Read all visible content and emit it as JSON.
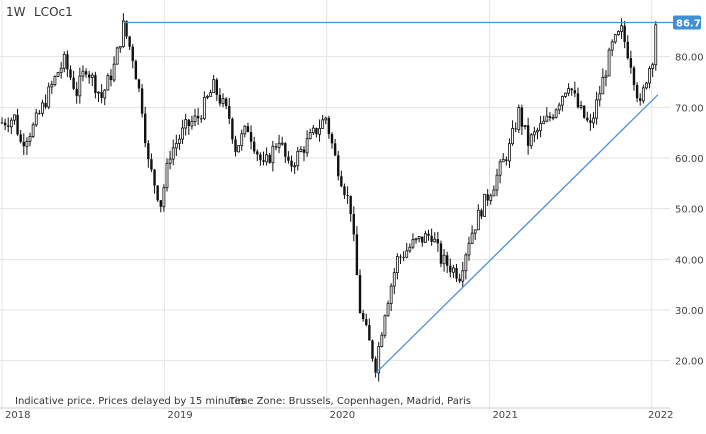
{
  "header": {
    "interval": "1W",
    "symbol": "LCOc1"
  },
  "footer": {
    "note": "Indicative price. Prices delayed by 15 minutes",
    "timezone": "Time Zone: Brussels, Copenhagen, Madrid, Paris"
  },
  "colors": {
    "candle": "#111111",
    "trendline": "#4a90d9",
    "price_tag_bg": "#3d8fd6",
    "price_tag_text": "#ffffff",
    "grid": "#e3e3e3"
  },
  "chart_data": {
    "type": "candlestick",
    "title": "",
    "x_axis": {
      "type": "time",
      "range": [
        "2018-01-01",
        "2022-01-15"
      ],
      "ticks": [
        {
          "date": "2018-01-01",
          "label": "2018"
        },
        {
          "date": "2019-01-01",
          "label": "2019"
        },
        {
          "date": "2020-01-01",
          "label": "2020"
        },
        {
          "date": "2021-01-01",
          "label": "2021"
        },
        {
          "date": "2022-01-01",
          "label": "2022"
        }
      ]
    },
    "y_axis": {
      "position": "right",
      "range": [
        15,
        90
      ],
      "ticks": [
        {
          "value": 20,
          "label": "20.00"
        },
        {
          "value": 30,
          "label": "30.00"
        },
        {
          "value": 40,
          "label": "40.00"
        },
        {
          "value": 50,
          "label": "50.00"
        },
        {
          "value": 60,
          "label": "60.00"
        },
        {
          "value": 70,
          "label": "70.00"
        },
        {
          "value": 80,
          "label": "80.00"
        }
      ]
    },
    "grid": true,
    "price_tag": {
      "value": 86.74,
      "label": "86.74"
    },
    "horizontal_line": {
      "start_date": "2018-10-01",
      "value": 86.74
    },
    "trendline": {
      "start": {
        "date": "2020-04-20",
        "value": 17.5
      },
      "end": {
        "date": "2022-01-15",
        "value": 72.5
      }
    },
    "price_path": [
      [
        "2018-01-01",
        67
      ],
      [
        "2018-01-29",
        68
      ],
      [
        "2018-02-12",
        63
      ],
      [
        "2018-03-12",
        66
      ],
      [
        "2018-04-02",
        70
      ],
      [
        "2018-05-07",
        77
      ],
      [
        "2018-05-21",
        79
      ],
      [
        "2018-06-18",
        73
      ],
      [
        "2018-07-09",
        78
      ],
      [
        "2018-08-13",
        72
      ],
      [
        "2018-09-10",
        78
      ],
      [
        "2018-10-01",
        86
      ],
      [
        "2018-10-22",
        80
      ],
      [
        "2018-11-12",
        70
      ],
      [
        "2018-11-26",
        59
      ],
      [
        "2018-12-24",
        51
      ],
      [
        "2019-01-14",
        61
      ],
      [
        "2019-02-18",
        66
      ],
      [
        "2019-03-18",
        68
      ],
      [
        "2019-04-22",
        74
      ],
      [
        "2019-05-27",
        68
      ],
      [
        "2019-06-10",
        62
      ],
      [
        "2019-07-08",
        66
      ],
      [
        "2019-08-12",
        58
      ],
      [
        "2019-09-16",
        64
      ],
      [
        "2019-10-07",
        58
      ],
      [
        "2019-11-18",
        63
      ],
      [
        "2019-12-30",
        68
      ],
      [
        "2020-01-20",
        60
      ],
      [
        "2020-02-24",
        50
      ],
      [
        "2020-03-16",
        30
      ],
      [
        "2020-04-20",
        19
      ],
      [
        "2020-05-11",
        30
      ],
      [
        "2020-06-08",
        40
      ],
      [
        "2020-07-13",
        43
      ],
      [
        "2020-08-24",
        45
      ],
      [
        "2020-09-14",
        40
      ],
      [
        "2020-10-26",
        37
      ],
      [
        "2020-11-16",
        44
      ],
      [
        "2020-12-14",
        50
      ],
      [
        "2021-01-11",
        55
      ],
      [
        "2021-02-15",
        62
      ],
      [
        "2021-03-08",
        69
      ],
      [
        "2021-03-29",
        63
      ],
      [
        "2021-04-26",
        66
      ],
      [
        "2021-05-17",
        68
      ],
      [
        "2021-06-28",
        75
      ],
      [
        "2021-07-19",
        70
      ],
      [
        "2021-08-16",
        66
      ],
      [
        "2021-09-06",
        73
      ],
      [
        "2021-10-04",
        82
      ],
      [
        "2021-10-25",
        85
      ],
      [
        "2021-11-15",
        79
      ],
      [
        "2021-12-06",
        70
      ],
      [
        "2021-12-20",
        76
      ],
      [
        "2022-01-03",
        80
      ],
      [
        "2022-01-10",
        86.74
      ]
    ]
  }
}
